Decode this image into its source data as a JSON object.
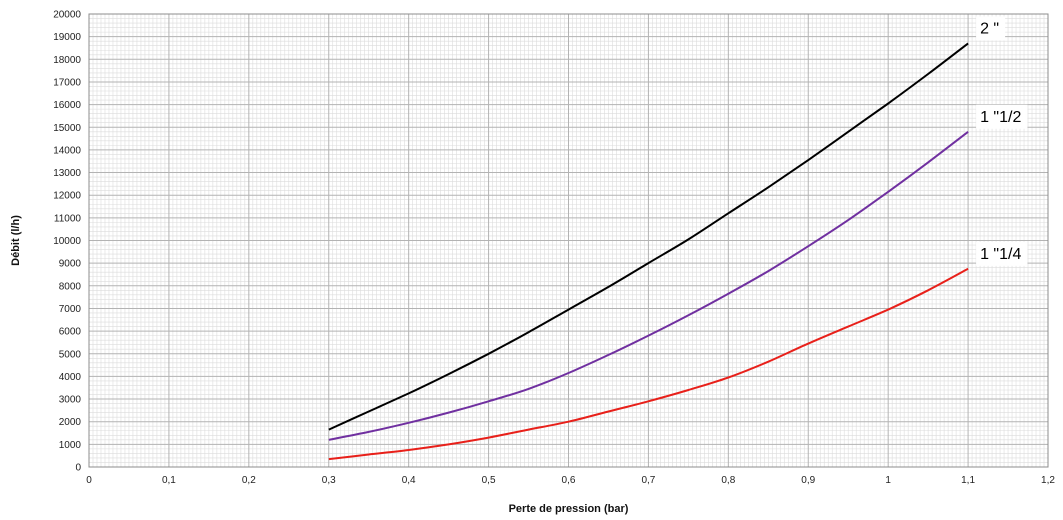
{
  "chart_data": {
    "type": "line",
    "title": "",
    "xlabel": "Perte de pression (bar)",
    "ylabel": "Débit (l/h)",
    "xlim": [
      0,
      1.2
    ],
    "ylim": [
      0,
      20000
    ],
    "x_ticks": [
      "0",
      "0,1",
      "0,2",
      "0,3",
      "0,4",
      "0,5",
      "0,6",
      "0,7",
      "0,8",
      "0,9",
      "1",
      "1,1",
      "1,2"
    ],
    "y_ticks": [
      "0",
      "1000",
      "2000",
      "3000",
      "4000",
      "5000",
      "6000",
      "7000",
      "8000",
      "9000",
      "10000",
      "11000",
      "12000",
      "13000",
      "14000",
      "15000",
      "16000",
      "17000",
      "18000",
      "19000",
      "20000"
    ],
    "grid": true,
    "legend": "inline labels at line ends",
    "x": [
      0.3,
      0.35,
      0.4,
      0.45,
      0.5,
      0.55,
      0.6,
      0.65,
      0.7,
      0.75,
      0.8,
      0.85,
      0.9,
      0.95,
      1.0,
      1.05,
      1.1
    ],
    "series": [
      {
        "name": "2 \"",
        "color": "#000000",
        "values": [
          1650,
          2450,
          3250,
          4100,
          5000,
          5950,
          6950,
          7950,
          9000,
          10050,
          11200,
          12350,
          13550,
          14800,
          16050,
          17350,
          18700
        ]
      },
      {
        "name": "1 \"1/2",
        "color": "#7030a0",
        "values": [
          1200,
          1550,
          1950,
          2400,
          2900,
          3450,
          4150,
          4950,
          5800,
          6700,
          7650,
          8650,
          9750,
          10900,
          12150,
          13450,
          14800
        ]
      },
      {
        "name": "1 \"1/4",
        "color": "#e8201a",
        "values": [
          350,
          550,
          750,
          1000,
          1300,
          1650,
          2000,
          2450,
          2900,
          3400,
          3950,
          4650,
          5450,
          6200,
          6950,
          7800,
          8750
        ]
      }
    ]
  }
}
